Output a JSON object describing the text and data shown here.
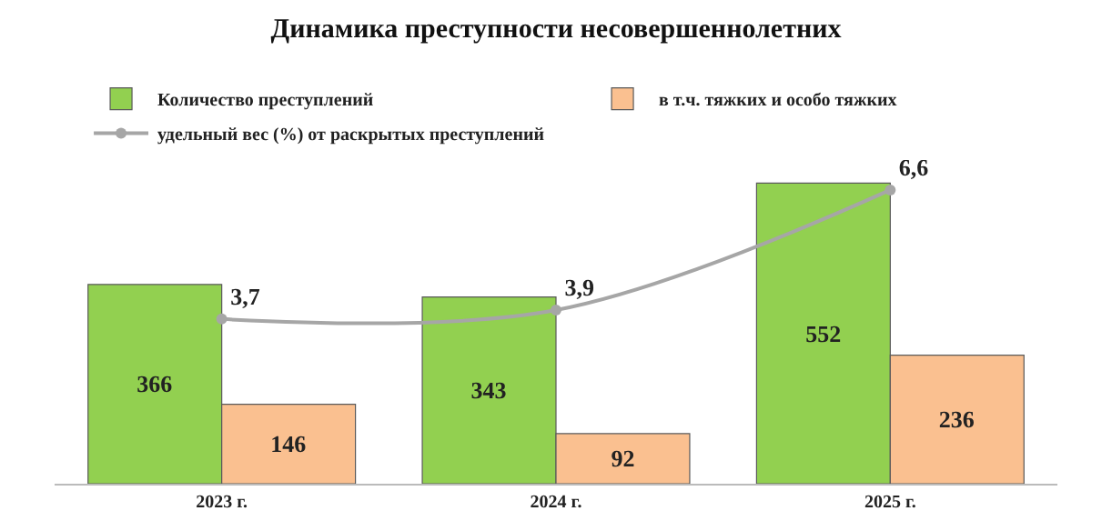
{
  "chart_data": {
    "type": "bar",
    "title": "Динамика преступности несовершеннолетних",
    "categories": [
      "2023 г.",
      "2024 г.",
      "2025 г."
    ],
    "series": [
      {
        "name": "Количество преступлений",
        "color": "#92d050",
        "values": [
          366,
          343,
          552
        ]
      },
      {
        "name": "в т.ч. тяжких и особо тяжких",
        "color": "#fac090",
        "values": [
          146,
          92,
          236
        ]
      },
      {
        "name": "удельный вес (%) от раскрытых преступлений",
        "type": "line",
        "axis": "y2",
        "color": "#a6a6a6",
        "values": [
          3.7,
          3.9,
          6.6
        ],
        "value_labels": [
          "3,7",
          "3,9",
          "6,6"
        ]
      }
    ],
    "tick_labels": "x",
    "data_labels": true,
    "grid": false,
    "legend": "top",
    "marker": "circle",
    "line_style": "solid"
  }
}
